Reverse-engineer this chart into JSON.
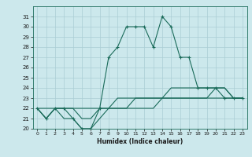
{
  "xlabel": "Humidex (Indice chaleur)",
  "bg_color": "#cce8ec",
  "line_color": "#1a6b5a",
  "grid_color": "#aacdd4",
  "xlim": [
    -0.5,
    23.5
  ],
  "ylim": [
    20,
    32
  ],
  "xticks": [
    0,
    1,
    2,
    3,
    4,
    5,
    6,
    7,
    8,
    9,
    10,
    11,
    12,
    13,
    14,
    15,
    16,
    17,
    18,
    19,
    20,
    21,
    22,
    23
  ],
  "yticks": [
    20,
    21,
    22,
    23,
    24,
    25,
    26,
    27,
    28,
    29,
    30,
    31
  ],
  "series": {
    "main": {
      "x": [
        0,
        1,
        2,
        3,
        4,
        5,
        6,
        7,
        8,
        9,
        10,
        11,
        12,
        13,
        14,
        15,
        16,
        17,
        18,
        19,
        20,
        21,
        22,
        23
      ],
      "y": [
        22,
        21,
        22,
        22,
        21,
        20,
        20,
        22,
        27,
        28,
        30,
        30,
        30,
        28,
        31,
        30,
        27,
        27,
        24,
        24,
        24,
        23,
        23,
        23
      ]
    },
    "line2": {
      "x": [
        0,
        1,
        2,
        3,
        4,
        5,
        6,
        7,
        8,
        9,
        10,
        11,
        12,
        13,
        14,
        15,
        16,
        17,
        18,
        19,
        20,
        21,
        22,
        23
      ],
      "y": [
        22,
        21,
        22,
        21,
        21,
        20,
        20,
        21,
        22,
        23,
        23,
        23,
        23,
        23,
        23,
        24,
        24,
        24,
        24,
        24,
        24,
        24,
        23,
        23
      ]
    },
    "line3": {
      "x": [
        0,
        1,
        2,
        3,
        4,
        5,
        6,
        7,
        8,
        9,
        10,
        11,
        12,
        13,
        14,
        15,
        16,
        17,
        18,
        19,
        20,
        21,
        22,
        23
      ],
      "y": [
        22,
        21,
        22,
        22,
        22,
        21,
        21,
        22,
        22,
        22,
        22,
        23,
        23,
        23,
        23,
        23,
        23,
        23,
        23,
        23,
        24,
        24,
        23,
        23
      ]
    },
    "line4": {
      "x": [
        0,
        1,
        2,
        3,
        4,
        5,
        6,
        7,
        8,
        9,
        10,
        11,
        12,
        13,
        14,
        15,
        16,
        17,
        18,
        19,
        20,
        21,
        22,
        23
      ],
      "y": [
        22,
        22,
        22,
        22,
        22,
        22,
        22,
        22,
        22,
        22,
        22,
        22,
        22,
        22,
        23,
        23,
        23,
        23,
        23,
        23,
        23,
        23,
        23,
        23
      ]
    }
  }
}
